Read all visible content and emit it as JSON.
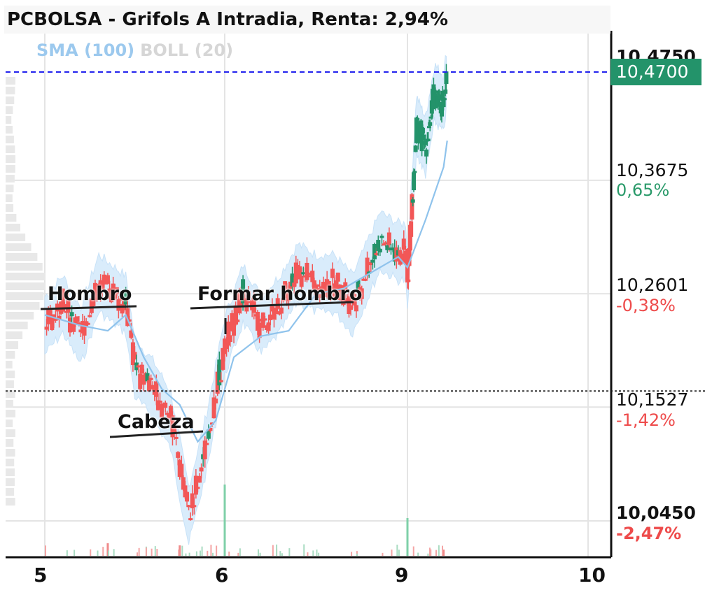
{
  "title": "PCBOLSA - Grifols A Intradia, Renta: 2,94%",
  "indicators": {
    "sma_label": "SMA (100)",
    "boll_label": "BOLL (20)"
  },
  "current_price_tag": "10,4700",
  "colors": {
    "up": "#23936a",
    "down": "#f25757",
    "sma": "#8fc3ec",
    "boll_band": "#d9ecfb",
    "last_price_line": "#2222ee",
    "reference_line": "#333333"
  },
  "y_axis": {
    "labels": [
      {
        "value": "10,4750",
        "pct": "",
        "bold": true
      },
      {
        "value": "10,3675",
        "pct": "0,65%",
        "sign": "pos"
      },
      {
        "value": "10,2601",
        "pct": "-0,38%",
        "sign": "neg"
      },
      {
        "value": "10,1527",
        "pct": "-1,42%",
        "sign": "neg"
      },
      {
        "value": "10,0450",
        "pct": "-2,47%",
        "sign": "neg",
        "bold": true
      }
    ]
  },
  "x_axis": {
    "labels": [
      "5",
      "6",
      "9",
      "10"
    ]
  },
  "annotations": [
    "Hombro",
    "Cabeza",
    "Formar hombro"
  ],
  "chart_data": {
    "type": "line",
    "x_labels": [
      "5",
      "6",
      "9",
      "10"
    ],
    "ylim": [
      10.018,
      10.49
    ],
    "last_price": 10.47,
    "reference_price": 10.168,
    "series": [
      {
        "x": [
          5.0,
          5.1,
          5.2,
          5.3,
          5.45,
          5.5,
          5.6,
          5.7,
          5.8,
          5.9,
          6.0,
          6.1,
          6.2,
          6.3,
          6.4,
          6.5,
          6.6,
          6.7,
          6.85,
          6.95,
          9.0,
          9.05,
          9.1,
          9.15,
          9.2,
          9.22
        ],
        "values": [
          10.23,
          10.25,
          10.22,
          10.27,
          10.25,
          10.19,
          10.17,
          10.14,
          10.05,
          10.12,
          10.21,
          10.26,
          10.23,
          10.25,
          10.28,
          10.27,
          10.27,
          10.25,
          10.31,
          10.3,
          10.27,
          10.42,
          10.4,
          10.45,
          10.44,
          10.47
        ]
      },
      {
        "name": "SMA (100)",
        "x": [
          5.0,
          5.2,
          5.35,
          5.45,
          5.55,
          5.65,
          5.75,
          5.85,
          5.95,
          6.05,
          6.2,
          6.35,
          6.5,
          6.65,
          6.8,
          6.95,
          9.0,
          9.1,
          9.2,
          9.22
        ],
        "values": [
          10.24,
          10.23,
          10.225,
          10.24,
          10.2,
          10.17,
          10.155,
          10.12,
          10.14,
          10.2,
          10.22,
          10.225,
          10.26,
          10.265,
          10.28,
          10.295,
          10.285,
          10.33,
          10.38,
          10.405
        ]
      }
    ],
    "volume_spikes": [
      {
        "x": 5.35,
        "volume": 0.06,
        "dir": "down"
      },
      {
        "x": 5.75,
        "volume": 0.05,
        "dir": "down"
      },
      {
        "x": 6.0,
        "volume": 0.34,
        "dir": "up"
      },
      {
        "x": 9.0,
        "volume": 0.18,
        "dir": "up"
      },
      {
        "x": 9.2,
        "volume": 0.03,
        "dir": "down"
      }
    ]
  }
}
